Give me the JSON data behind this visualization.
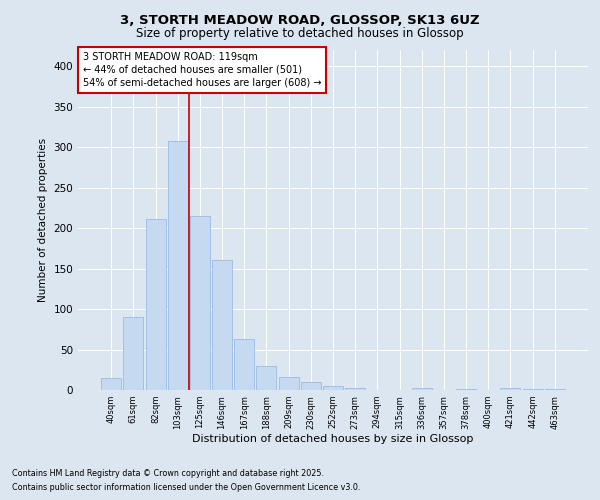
{
  "title1": "3, STORTH MEADOW ROAD, GLOSSOP, SK13 6UZ",
  "title2": "Size of property relative to detached houses in Glossop",
  "xlabel": "Distribution of detached houses by size in Glossop",
  "ylabel": "Number of detached properties",
  "bar_labels": [
    "40sqm",
    "61sqm",
    "82sqm",
    "103sqm",
    "125sqm",
    "146sqm",
    "167sqm",
    "188sqm",
    "209sqm",
    "230sqm",
    "252sqm",
    "273sqm",
    "294sqm",
    "315sqm",
    "336sqm",
    "357sqm",
    "378sqm",
    "400sqm",
    "421sqm",
    "442sqm",
    "463sqm"
  ],
  "bar_values": [
    15,
    90,
    211,
    307,
    215,
    160,
    63,
    30,
    16,
    10,
    5,
    2,
    0,
    0,
    3,
    0,
    1,
    0,
    2,
    1,
    1
  ],
  "bar_color": "#c5d9f1",
  "bar_edge_color": "#8db4e2",
  "vline_x": 3.5,
  "property_line_label": "3 STORTH MEADOW ROAD: 119sqm",
  "annotation_line1": "← 44% of detached houses are smaller (501)",
  "annotation_line2": "54% of semi-detached houses are larger (608) →",
  "vline_color": "#cc0000",
  "ylim": [
    0,
    420
  ],
  "yticks": [
    0,
    50,
    100,
    150,
    200,
    250,
    300,
    350,
    400
  ],
  "bg_color": "#dce6f1",
  "grid_color": "#ffffff",
  "footer1": "Contains HM Land Registry data © Crown copyright and database right 2025.",
  "footer2": "Contains public sector information licensed under the Open Government Licence v3.0."
}
